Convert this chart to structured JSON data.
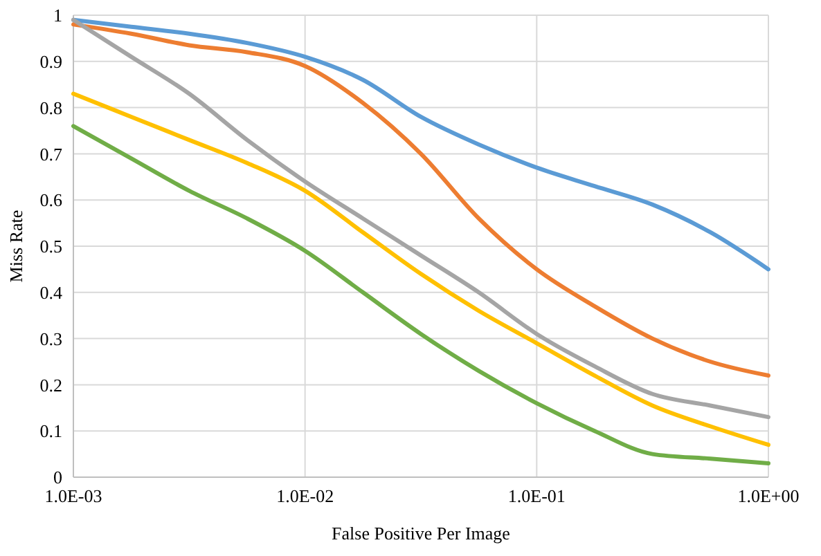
{
  "chart_data": {
    "type": "line",
    "xlabel": "False Positive Per Image",
    "ylabel": "Miss Rate",
    "log": "x",
    "x": [
      0.001,
      0.001778,
      0.003162,
      0.005623,
      0.01,
      0.01778,
      0.03162,
      0.05623,
      0.1,
      0.1778,
      0.3162,
      0.5623,
      1
    ],
    "series": [
      {
        "color": "#5b9bd5",
        "values": [
          0.99,
          0.975,
          0.96,
          0.94,
          0.91,
          0.86,
          0.78,
          0.72,
          0.67,
          0.63,
          0.59,
          0.53,
          0.45
        ]
      },
      {
        "color": "#ed7d31",
        "values": [
          0.98,
          0.96,
          0.935,
          0.92,
          0.89,
          0.81,
          0.7,
          0.56,
          0.45,
          0.37,
          0.3,
          0.25,
          0.22
        ]
      },
      {
        "color": "#a5a5a5",
        "values": [
          0.99,
          0.91,
          0.83,
          0.73,
          0.64,
          0.56,
          0.48,
          0.4,
          0.31,
          0.24,
          0.18,
          0.155,
          0.13
        ]
      },
      {
        "color": "#ffc000",
        "values": [
          0.83,
          0.78,
          0.73,
          0.68,
          0.62,
          0.53,
          0.44,
          0.36,
          0.29,
          0.22,
          0.155,
          0.11,
          0.07
        ]
      },
      {
        "color": "#70ad47",
        "values": [
          0.76,
          0.69,
          0.62,
          0.56,
          0.49,
          0.4,
          0.31,
          0.23,
          0.16,
          0.1,
          0.05,
          0.04,
          0.03
        ]
      }
    ],
    "xlim": [
      0.001,
      1
    ],
    "xticks": [
      {
        "value": 0.001,
        "label": "1.0E-03"
      },
      {
        "value": 0.01,
        "label": "1.0E-02"
      },
      {
        "value": 0.1,
        "label": "1.0E-01"
      },
      {
        "value": 1,
        "label": "1.0E+00"
      }
    ],
    "ylim": [
      0,
      1
    ],
    "yticks": [
      0,
      0.1,
      0.2,
      0.3,
      0.4,
      0.5,
      0.6,
      0.7,
      0.8,
      0.9,
      1
    ],
    "grid": true,
    "marker": "none",
    "line_style": "solid"
  }
}
